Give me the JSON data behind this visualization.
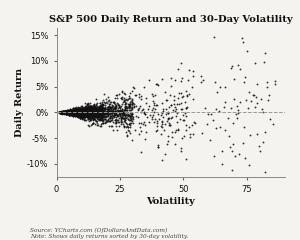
{
  "title": "S&P 500 Daily Return and 30-Day Volatility",
  "xlabel": "Volatility",
  "ylabel": "Daily Return",
  "source_text": "Source: YCharts.com (OfDollarsAndData.com)\nNote: Shows daily returns sorted by 30-day volatility.",
  "xlim": [
    0,
    90
  ],
  "ylim": [
    -0.125,
    0.165
  ],
  "xticks": [
    0,
    25,
    50,
    75
  ],
  "yticks": [
    -0.1,
    -0.05,
    0.0,
    0.05,
    0.1,
    0.15
  ],
  "dot_color": "#111111",
  "dot_size": 1.8,
  "dot_alpha": 0.85,
  "hline_y": 0.0,
  "hline_color": "#999999",
  "background_color": "#f5f3ef",
  "seed": 99,
  "n_very_low": 2200,
  "n_low": 600,
  "n_mid": 200,
  "n_high": 90
}
